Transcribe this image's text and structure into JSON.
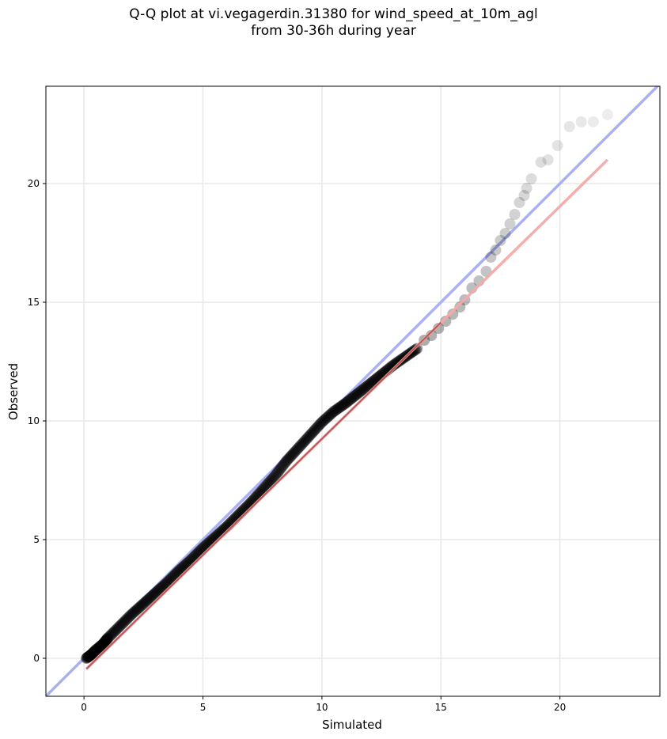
{
  "chart_data": {
    "type": "scatter",
    "title_line1": "Q-Q plot at vi.vegagerdin.31380 for wind_speed_at_10m_agl",
    "title_line2": "from 30-36h during year",
    "xlabel": "Simulated",
    "ylabel": "Observed",
    "xlim": [
      -1.6,
      24.2
    ],
    "ylim": [
      -1.6,
      24.1
    ],
    "xticks": [
      0,
      5,
      10,
      15,
      20
    ],
    "yticks": [
      0,
      5,
      10,
      15,
      20
    ],
    "grid": true,
    "legend": "none",
    "reference_line": {
      "name": "1:1",
      "color": "#aab0f2",
      "x": [
        -1.6,
        24.2
      ],
      "y": [
        -1.6,
        24.2
      ]
    },
    "fit_line": {
      "color": "#f2aaaa",
      "x": [
        0.1,
        22.0
      ],
      "y": [
        -0.45,
        21.0
      ]
    },
    "points_dense": {
      "x": [
        0.1,
        0.3,
        0.5,
        0.8,
        1.0,
        1.5,
        2.0,
        2.5,
        3.0,
        3.5,
        4.0,
        4.5,
        5.0,
        5.5,
        6.0,
        6.5,
        7.0,
        7.5,
        8.0,
        8.5,
        9.0,
        9.5,
        10.0,
        10.5,
        11.0,
        11.5,
        12.0,
        12.5,
        13.0,
        13.5,
        14.0
      ],
      "y": [
        0.0,
        0.15,
        0.35,
        0.6,
        0.85,
        1.35,
        1.85,
        2.3,
        2.75,
        3.2,
        3.7,
        4.15,
        4.65,
        5.1,
        5.55,
        6.05,
        6.55,
        7.1,
        7.65,
        8.3,
        8.85,
        9.4,
        9.95,
        10.4,
        10.75,
        11.15,
        11.55,
        11.95,
        12.35,
        12.7,
        13.05
      ],
      "color": "#000000"
    },
    "points_tail": {
      "x": [
        14.3,
        14.6,
        14.9,
        15.2,
        15.5,
        15.8,
        16.0,
        16.3,
        16.6,
        16.9,
        17.1,
        17.3,
        17.5,
        17.7,
        17.9,
        18.1,
        18.3,
        18.5,
        18.6,
        18.8,
        19.2,
        19.5,
        19.9,
        20.4,
        20.9,
        21.4,
        22.0
      ],
      "y": [
        13.4,
        13.6,
        13.9,
        14.2,
        14.5,
        14.8,
        15.1,
        15.6,
        15.9,
        16.3,
        16.9,
        17.2,
        17.6,
        17.9,
        18.3,
        18.7,
        19.2,
        19.5,
        19.8,
        20.2,
        20.9,
        21.0,
        21.6,
        22.4,
        22.6,
        22.6,
        22.9
      ],
      "color": "#000000"
    }
  }
}
